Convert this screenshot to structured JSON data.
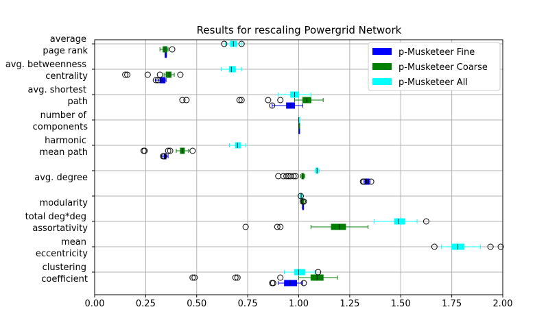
{
  "chart_data": {
    "type": "boxplot",
    "orientation": "horizontal",
    "title": "Results for rescaling Powergrid Network",
    "xlabel": "",
    "ylabel": "",
    "xlim": [
      0.0,
      2.0
    ],
    "xticks": [
      "0.00",
      "0.25",
      "0.50",
      "0.75",
      "1.00",
      "1.25",
      "1.50",
      "1.75",
      "2.00"
    ],
    "grid": true,
    "legend_position": "top-right",
    "categories": [
      {
        "label1": "average",
        "label2": "page rank"
      },
      {
        "label1": "avg. betweenness",
        "label2": "centrality"
      },
      {
        "label1": "avg. shortest",
        "label2": "path"
      },
      {
        "label1": "number of",
        "label2": "components"
      },
      {
        "label1": "harmonic",
        "label2": "mean path"
      },
      {
        "label1": "",
        "label2": "avg. degree"
      },
      {
        "label1": "",
        "label2": "modularity"
      },
      {
        "label1": "total deg*deg",
        "label2": "assortativity"
      },
      {
        "label1": "mean",
        "label2": "eccentricity"
      },
      {
        "label1": "clustering",
        "label2": "coefficient"
      }
    ],
    "series": [
      {
        "name": "p-Musketeer Fine",
        "color": "#0000ff",
        "boxes": [
          {
            "category": 0,
            "wlo": 0.345,
            "q1": 0.345,
            "med": 0.348,
            "q3": 0.352,
            "whi": 0.352,
            "fliers": []
          },
          {
            "category": 1,
            "wlo": 0.3,
            "q1": 0.32,
            "med": 0.33,
            "q3": 0.345,
            "whi": 0.35,
            "fliers": [
              0.3,
              0.31
            ]
          },
          {
            "category": 2,
            "wlo": 0.87,
            "q1": 0.94,
            "med": 0.96,
            "q3": 0.98,
            "whi": 1.02,
            "fliers": [
              0.87
            ]
          },
          {
            "category": 3,
            "wlo": 1.0,
            "q1": 1.0,
            "med": 1.0,
            "q3": 1.0,
            "whi": 1.0,
            "fliers": []
          },
          {
            "category": 4,
            "wlo": 0.33,
            "q1": 0.34,
            "med": 0.345,
            "q3": 0.35,
            "whi": 0.36,
            "fliers": [
              0.335,
              0.34
            ]
          },
          {
            "category": 5,
            "wlo": 1.32,
            "q1": 1.325,
            "med": 1.335,
            "q3": 1.345,
            "whi": 1.35,
            "fliers": [
              1.315,
              1.32,
              1.355
            ]
          },
          {
            "category": 6,
            "wlo": 1.018,
            "q1": 1.019,
            "med": 1.02,
            "q3": 1.021,
            "whi": 1.022,
            "fliers": []
          },
          {
            "category": 9,
            "wlo": 0.9,
            "q1": 0.93,
            "med": 0.96,
            "q3": 0.99,
            "whi": 1.02,
            "fliers": [
              0.87,
              0.875,
              1.025
            ]
          }
        ]
      },
      {
        "name": "p-Musketeer Coarse",
        "color": "#008000",
        "boxes": [
          {
            "category": 0,
            "wlo": 0.32,
            "q1": 0.335,
            "med": 0.345,
            "q3": 0.355,
            "whi": 0.36,
            "fliers": [
              0.38
            ]
          },
          {
            "category": 1,
            "wlo": 0.34,
            "q1": 0.35,
            "med": 0.365,
            "q3": 0.375,
            "whi": 0.39,
            "fliers": [
              0.15,
              0.16,
              0.26,
              0.32,
              0.42
            ]
          },
          {
            "category": 2,
            "wlo": 0.98,
            "q1": 1.02,
            "med": 1.04,
            "q3": 1.06,
            "whi": 1.12,
            "fliers": [
              0.43,
              0.45,
              0.71,
              0.72,
              0.85,
              0.91
            ]
          },
          {
            "category": 3,
            "wlo": 1.0,
            "q1": 1.0,
            "med": 1.0,
            "q3": 1.0,
            "whi": 1.0,
            "fliers": []
          },
          {
            "category": 4,
            "wlo": 0.4,
            "q1": 0.42,
            "med": 0.43,
            "q3": 0.44,
            "whi": 0.46,
            "fliers": [
              0.24,
              0.245,
              0.36,
              0.37,
              0.48
            ]
          },
          {
            "category": 5,
            "wlo": 1.01,
            "q1": 1.015,
            "med": 1.02,
            "q3": 1.025,
            "whi": 1.03,
            "fliers": [
              0.9,
              0.925,
              0.94,
              0.95,
              0.96,
              0.975,
              0.985
            ]
          },
          {
            "category": 6,
            "wlo": 1.015,
            "q1": 1.018,
            "med": 1.02,
            "q3": 1.022,
            "whi": 1.025,
            "fliers": [
              1.02,
              1.025
            ]
          },
          {
            "category": 7,
            "wlo": 1.06,
            "q1": 1.16,
            "med": 1.2,
            "q3": 1.23,
            "whi": 1.34,
            "fliers": [
              0.74,
              0.895,
              0.91
            ]
          },
          {
            "category": 9,
            "wlo": 1.0,
            "q1": 1.06,
            "med": 1.09,
            "q3": 1.12,
            "whi": 1.19,
            "fliers": [
              0.48,
              0.49,
              0.69,
              0.7,
              0.91
            ]
          }
        ]
      },
      {
        "name": "p-Musketeer All",
        "color": "#00ffff",
        "boxes": [
          {
            "category": 0,
            "wlo": 0.64,
            "q1": 0.665,
            "med": 0.68,
            "q3": 0.695,
            "whi": 0.72,
            "fliers": [
              0.635,
              0.72
            ]
          },
          {
            "category": 1,
            "wlo": 0.62,
            "q1": 0.66,
            "med": 0.67,
            "q3": 0.69,
            "whi": 0.72,
            "fliers": []
          },
          {
            "category": 2,
            "wlo": 0.9,
            "q1": 0.96,
            "med": 0.98,
            "q3": 1.0,
            "whi": 1.06,
            "fliers": []
          },
          {
            "category": 3,
            "wlo": 1.0,
            "q1": 1.0,
            "med": 1.0,
            "q3": 1.0,
            "whi": 1.0,
            "fliers": []
          },
          {
            "category": 4,
            "wlo": 0.66,
            "q1": 0.69,
            "med": 0.7,
            "q3": 0.715,
            "whi": 0.74,
            "fliers": []
          },
          {
            "category": 5,
            "wlo": 1.08,
            "q1": 1.085,
            "med": 1.09,
            "q3": 1.095,
            "whi": 1.1,
            "fliers": []
          },
          {
            "category": 6,
            "wlo": 1.008,
            "q1": 1.01,
            "med": 1.012,
            "q3": 1.014,
            "whi": 1.016,
            "fliers": [
              1.01
            ]
          },
          {
            "category": 7,
            "wlo": 1.37,
            "q1": 1.47,
            "med": 1.49,
            "q3": 1.52,
            "whi": 1.58,
            "fliers": [
              1.625
            ]
          },
          {
            "category": 8,
            "wlo": 1.7,
            "q1": 1.75,
            "med": 1.78,
            "q3": 1.81,
            "whi": 1.89,
            "fliers": [
              1.665,
              1.94,
              1.99
            ]
          },
          {
            "category": 9,
            "wlo": 0.93,
            "q1": 0.98,
            "med": 1.0,
            "q3": 1.03,
            "whi": 1.08,
            "fliers": [
              1.095
            ]
          }
        ]
      }
    ]
  }
}
